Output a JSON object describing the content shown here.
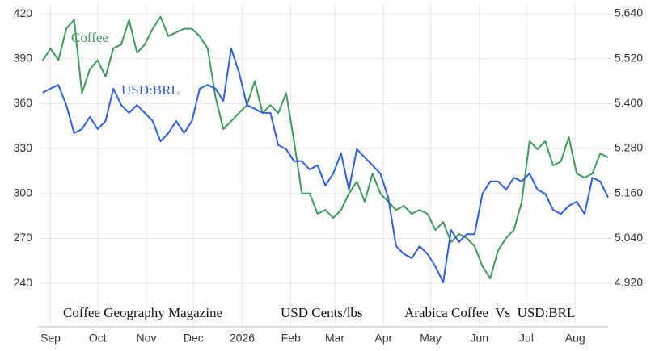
{
  "chart_data": {
    "type": "line",
    "annotations": [
      "Coffee",
      "USD:BRL",
      "Coffee Geography Magazine",
      "USD Cents/lbs",
      "Arabica Coffee  Vs  USD:BRL"
    ],
    "x": [
      -5,
      0,
      5,
      10,
      15,
      20,
      25,
      30,
      35,
      40,
      45,
      50,
      55,
      60,
      65,
      70,
      75,
      80,
      85,
      90,
      95,
      100,
      105,
      110,
      115,
      120,
      125,
      130,
      135,
      140,
      145,
      150,
      155,
      160,
      165,
      170,
      175,
      180,
      185,
      190,
      195,
      200,
      205,
      210,
      215,
      220,
      225,
      230,
      235,
      240,
      245,
      250,
      255,
      260,
      265,
      270,
      275,
      280,
      285,
      290,
      295,
      300,
      305,
      310,
      315,
      320,
      325,
      330,
      335,
      340,
      345,
      350,
      355
    ],
    "series": [
      {
        "name": "Coffee",
        "color": "#3f9a5a",
        "axis": "y",
        "values": [
          388.8,
          396.8,
          389,
          410,
          416,
          367,
          383,
          389,
          378,
          397,
          399.5,
          416,
          394,
          399.5,
          410,
          418,
          405,
          407.6,
          410,
          410,
          405,
          396.8,
          364.5,
          343,
          348.3,
          353.7,
          359,
          375,
          353.7,
          359,
          353.7,
          367,
          334.9,
          300,
          300,
          286.4,
          289,
          283.7,
          289,
          300,
          308,
          294.5,
          313.3,
          300,
          294.5,
          289,
          291.8,
          286.4,
          289,
          286.4,
          275.6,
          281,
          267.5,
          273,
          270.2,
          264.8,
          251.4,
          243.3,
          262.1,
          270.2,
          275.6,
          294.5,
          334.9,
          329.5,
          334.9,
          318.7,
          321.4,
          337.6,
          313.3,
          310.6,
          313.3,
          326.8,
          324.1
        ]
      },
      {
        "name": "USD:BRL",
        "color": "#2e5fe0",
        "axis": "y2",
        "values": [
          5.429,
          5.44,
          5.45,
          5.396,
          5.321,
          5.332,
          5.364,
          5.332,
          5.353,
          5.44,
          5.396,
          5.375,
          5.396,
          5.375,
          5.353,
          5.299,
          5.321,
          5.353,
          5.321,
          5.353,
          5.44,
          5.45,
          5.44,
          5.407,
          5.547,
          5.483,
          5.396,
          5.386,
          5.375,
          5.375,
          5.289,
          5.278,
          5.246,
          5.246,
          5.224,
          5.235,
          5.181,
          5.213,
          5.267,
          5.17,
          5.278,
          5.256,
          5.235,
          5.213,
          5.149,
          5.019,
          4.998,
          4.987,
          5.019,
          4.998,
          4.965,
          4.922,
          5.062,
          5.03,
          5.051,
          5.051,
          5.159,
          5.192,
          5.192,
          5.17,
          5.202,
          5.192,
          5.213,
          5.17,
          5.159,
          5.116,
          5.105,
          5.127,
          5.138,
          5.105,
          5.202,
          5.192,
          5.149
        ]
      }
    ],
    "xlim": [
      -8,
      355
    ],
    "xticks": [
      {
        "value": 0,
        "label": "Sep"
      },
      {
        "value": 30,
        "label": "Oct"
      },
      {
        "value": 61,
        "label": "Nov"
      },
      {
        "value": 91,
        "label": "Dec"
      },
      {
        "value": 122,
        "label": "2026"
      },
      {
        "value": 153,
        "label": "Feb"
      },
      {
        "value": 181,
        "label": "Mar"
      },
      {
        "value": 212,
        "label": "Apr"
      },
      {
        "value": 242,
        "label": "May"
      },
      {
        "value": 273,
        "label": "Jun"
      },
      {
        "value": 303,
        "label": "Jul"
      },
      {
        "value": 334,
        "label": "Aug"
      }
    ],
    "ylim": [
      211,
      426.5
    ],
    "yticks": [
      240,
      270,
      300,
      330,
      360,
      390,
      420
    ],
    "y2lim": [
      4.8036,
      5.6659
    ],
    "y2ticks": [
      {
        "value": 4.92,
        "label": "4.920"
      },
      {
        "value": 5.04,
        "label": "5.040"
      },
      {
        "value": 5.16,
        "label": "5.160"
      },
      {
        "value": 5.28,
        "label": "5.280"
      },
      {
        "value": 5.4,
        "label": "5.400"
      },
      {
        "value": 5.52,
        "label": "5.520"
      },
      {
        "value": 5.64,
        "label": "5.640"
      }
    ],
    "grid": true
  }
}
